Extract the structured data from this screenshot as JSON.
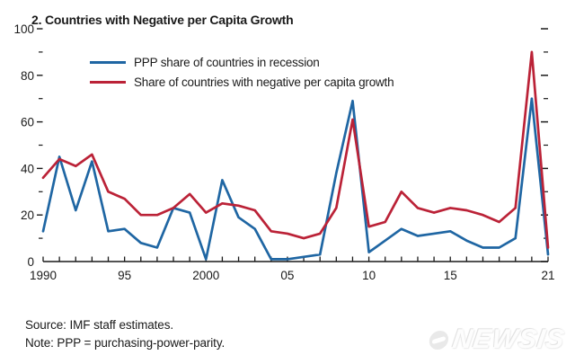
{
  "title": "2. Countries with Negative per Capita Growth",
  "legend": [
    {
      "label": "PPP share of countries in recession",
      "color": "#1f66a3"
    },
    {
      "label": "Share of countries with negative per capita growth",
      "color": "#bb2237"
    }
  ],
  "footer": {
    "source": "Source: IMF staff estimates.",
    "note": "Note: PPP = purchasing-power-parity."
  },
  "watermark": {
    "text": "NEWSIS"
  },
  "axis_color": "#1a1a1a",
  "chart_data": {
    "type": "line",
    "title": "2. Countries with Negative per Capita Growth",
    "xlabel": "",
    "ylabel": "",
    "grid": false,
    "legend_position": "top-left",
    "xlim": [
      1990,
      2021
    ],
    "ylim": [
      0,
      100
    ],
    "y_major_ticks": [
      0,
      20,
      40,
      60,
      80,
      100
    ],
    "y_minor_ticks": [
      10,
      30,
      50,
      70,
      90
    ],
    "x_tick_labels": [
      {
        "v": 1990,
        "label": "1990"
      },
      {
        "v": 1995,
        "label": "95"
      },
      {
        "v": 2000,
        "label": "2000"
      },
      {
        "v": 2005,
        "label": "05"
      },
      {
        "v": 2010,
        "label": "10"
      },
      {
        "v": 2015,
        "label": "15"
      },
      {
        "v": 2021,
        "label": "21"
      }
    ],
    "x": [
      1990,
      1991,
      1992,
      1993,
      1994,
      1995,
      1996,
      1997,
      1998,
      1999,
      2000,
      2001,
      2002,
      2003,
      2004,
      2005,
      2006,
      2007,
      2008,
      2009,
      2010,
      2011,
      2012,
      2013,
      2014,
      2015,
      2016,
      2017,
      2018,
      2019,
      2020,
      2021
    ],
    "series": [
      {
        "name": "PPP share of countries in recession",
        "color": "#1f66a3",
        "values": [
          13,
          45,
          22,
          43,
          13,
          14,
          8,
          6,
          23,
          21,
          1,
          35,
          19,
          14,
          1,
          1,
          2,
          3,
          38,
          69,
          4,
          9,
          14,
          11,
          12,
          13,
          9,
          6,
          6,
          10,
          70,
          3
        ]
      },
      {
        "name": "Share of countries with negative per capita growth",
        "color": "#bb2237",
        "values": [
          36,
          44,
          41,
          46,
          30,
          27,
          20,
          20,
          23,
          29,
          21,
          25,
          24,
          22,
          13,
          12,
          10,
          12,
          23,
          61,
          15,
          17,
          30,
          23,
          21,
          23,
          22,
          20,
          17,
          23,
          90,
          6
        ]
      }
    ]
  }
}
